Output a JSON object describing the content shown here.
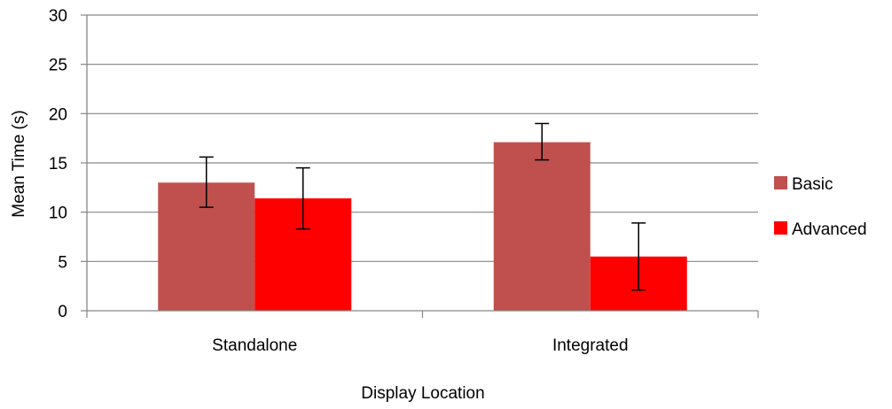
{
  "chart_data": {
    "type": "bar",
    "title": "",
    "xlabel": "Display Location",
    "ylabel": "Mean Time (s)",
    "ylim": [
      0,
      30
    ],
    "yticks": [
      0,
      5,
      10,
      15,
      20,
      25,
      30
    ],
    "grid": true,
    "legend_position": "right",
    "categories": [
      "Standalone",
      "Integrated"
    ],
    "series": [
      {
        "name": "Basic",
        "color": "#c0504d",
        "values": [
          13.0,
          17.1
        ],
        "error_low": [
          10.5,
          15.3
        ],
        "error_high": [
          15.6,
          19.0
        ]
      },
      {
        "name": "Advanced",
        "color": "#ff0000",
        "values": [
          11.4,
          5.5
        ],
        "error_low": [
          8.3,
          2.1
        ],
        "error_high": [
          14.5,
          8.9
        ]
      }
    ]
  }
}
